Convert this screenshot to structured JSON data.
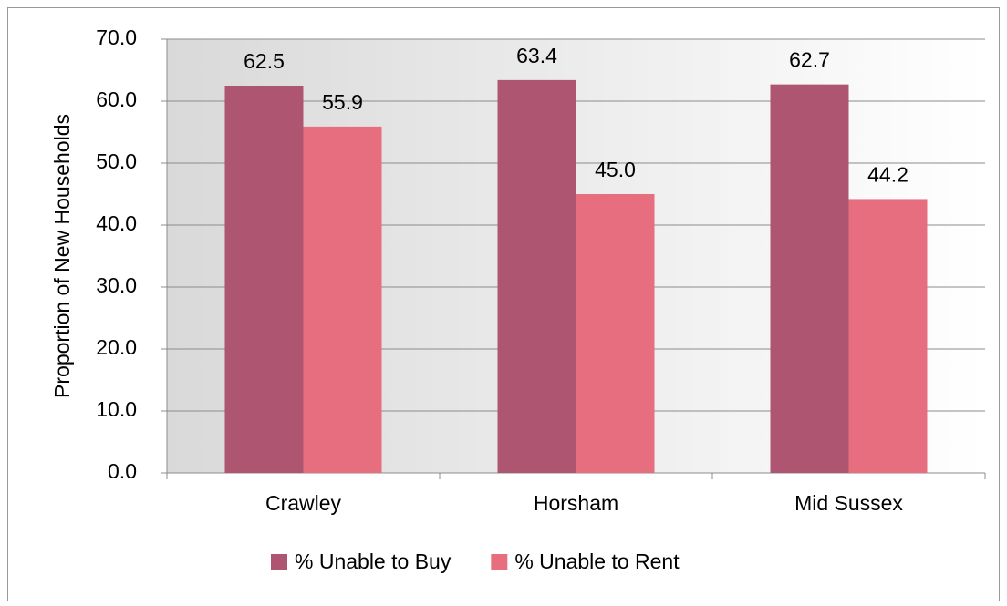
{
  "chart_data": {
    "type": "bar",
    "y_label": "Proportion of New Households",
    "categories": [
      "Crawley",
      "Horsham",
      "Mid Sussex"
    ],
    "series": [
      {
        "name": "% Unable to Buy",
        "color": "#ad5571",
        "values": [
          62.5,
          63.4,
          62.7
        ],
        "value_labels": [
          "62.5",
          "63.4",
          "62.7"
        ]
      },
      {
        "name": "% Unable to Rent",
        "color": "#e66e7e",
        "values": [
          55.9,
          45,
          44.2
        ],
        "value_labels": [
          "55.9",
          "45.0",
          "44.2"
        ]
      }
    ],
    "ylim": [
      0,
      70
    ],
    "yticks": [
      {
        "value": 0,
        "label": "0.0"
      },
      {
        "value": 10,
        "label": "10.0"
      },
      {
        "value": 20,
        "label": "20.0"
      },
      {
        "value": 30,
        "label": "30.0"
      },
      {
        "value": 40,
        "label": "40.0"
      },
      {
        "value": 50,
        "label": "50.0"
      },
      {
        "value": 60,
        "label": "60.0"
      },
      {
        "value": 70,
        "label": "70.0"
      }
    ],
    "grid": true,
    "legend": "bottom"
  }
}
